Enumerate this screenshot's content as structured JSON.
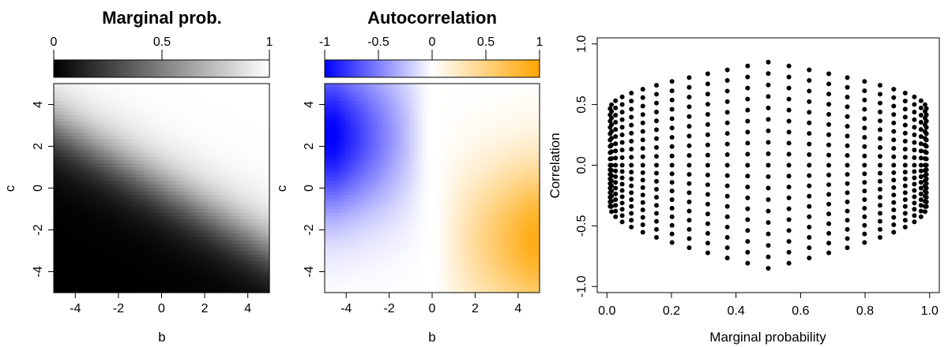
{
  "chart_data": [
    {
      "type": "heatmap",
      "title": "Marginal prob.",
      "xlabel": "b",
      "ylabel": "c",
      "xlim": [
        -5,
        5
      ],
      "ylim": [
        -5,
        5
      ],
      "x_ticks": [
        "-4",
        "-2",
        "0",
        "2",
        "4"
      ],
      "y_ticks": [
        "-4",
        "-2",
        "0",
        "2",
        "4"
      ],
      "colorbar": {
        "range": [
          0,
          1
        ],
        "ticks": [
          "0",
          "0.5",
          "1"
        ],
        "colors": [
          "#000000",
          "#ffffff"
        ]
      },
      "surface": "marginal probability of (b, c): 1/(1+exp(-(b + 1.7c)/1.5)); black at 0, white at 1"
    },
    {
      "type": "heatmap",
      "title": "Autocorrelation",
      "xlabel": "b",
      "ylabel": "c",
      "xlim": [
        -5,
        5
      ],
      "ylim": [
        -5,
        5
      ],
      "x_ticks": [
        "-4",
        "-2",
        "0",
        "2",
        "4"
      ],
      "y_ticks": [
        "-4",
        "-2",
        "0",
        "2",
        "4"
      ],
      "colorbar": {
        "range": [
          -1,
          1
        ],
        "ticks": [
          "-1",
          "-0.5",
          "0",
          "0.5",
          "1"
        ],
        "colors": [
          "#0000ff",
          "#ffffff",
          "#ffa500"
        ]
      },
      "surface": "autocorrelation of (b, c): negative (blue) for b<0, positive (orange) for b>0; strongest near b=-5,c=2.5 and b=5,c=-2.5"
    },
    {
      "type": "scatter",
      "title": "",
      "xlabel": "Marginal probability",
      "ylabel": "Correlation",
      "xlim": [
        -0.03,
        1.03
      ],
      "ylim": [
        -1.05,
        1.05
      ],
      "x_ticks": [
        "0.0",
        "0.2",
        "0.4",
        "0.6",
        "0.8",
        "1.0"
      ],
      "y_ticks": [
        "-1.0",
        "-0.5",
        "0.0",
        "0.5",
        "1.0"
      ],
      "point_color": "#000000",
      "points": "grid of 10 correlation levels (0.85 .. 0.0) by 10 probability paths, mirrored to negative correlations; generated as p = 0.5 ± 0.5·sqrt(1-|r|)^(k/9) pattern"
    }
  ]
}
